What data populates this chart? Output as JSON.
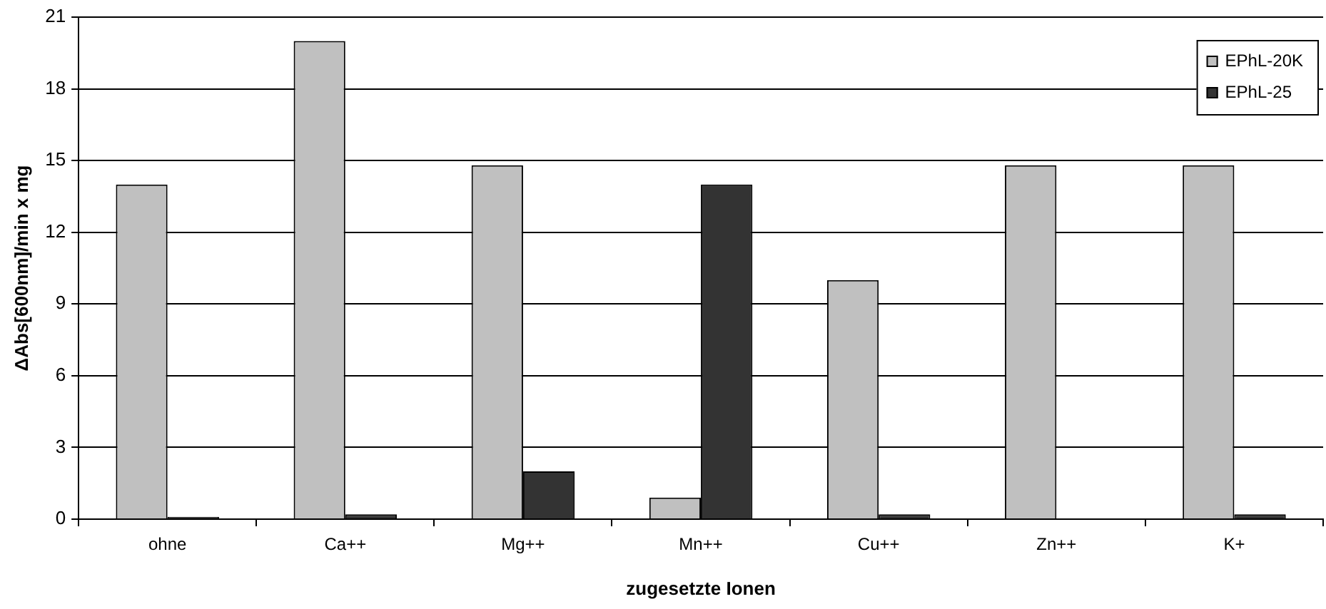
{
  "chart_data": {
    "type": "bar",
    "xlabel": "zugesetzte Ionen",
    "ylabel": "ΔAbs[600nm]/min x mg",
    "categories": [
      "ohne",
      "Ca++",
      "Mg++",
      "Mn++",
      "Cu++",
      "Zn++",
      "K+"
    ],
    "series": [
      {
        "name": "EPhL-20K",
        "color": "#c0c0c0",
        "values": [
          14,
          20,
          14.8,
          0.9,
          10,
          14.8,
          14.8
        ]
      },
      {
        "name": "EPhL-25",
        "color": "#333333",
        "values": [
          0.1,
          0.2,
          2,
          14,
          0.2,
          null,
          0.2
        ]
      }
    ],
    "ylim": [
      0,
      21
    ],
    "yticks": [
      0,
      3,
      6,
      9,
      12,
      15,
      18,
      21
    ],
    "grid": "y",
    "legend": "top right"
  }
}
